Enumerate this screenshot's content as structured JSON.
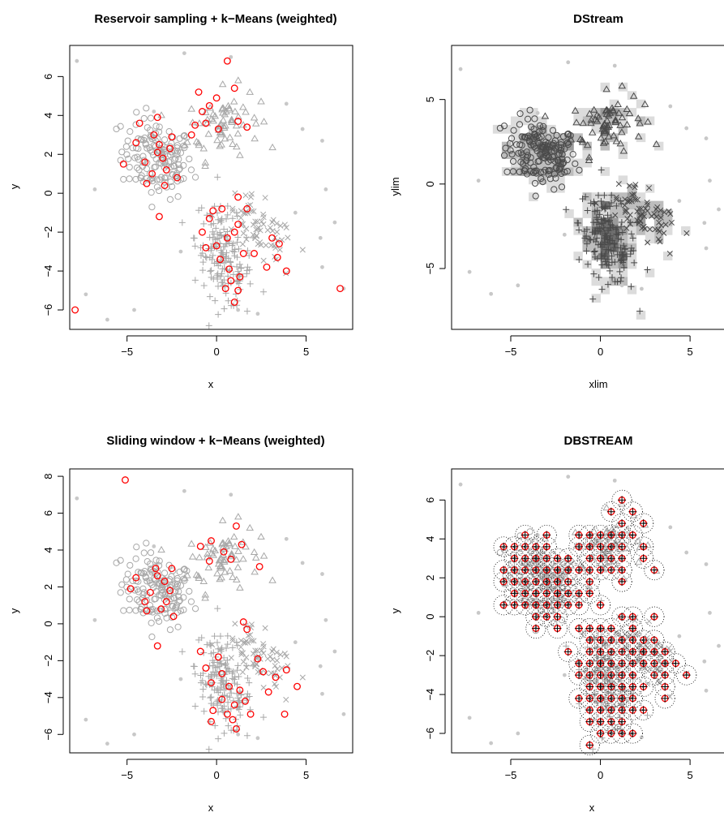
{
  "chart_data": [
    {
      "type": "scatter",
      "title": "Reservoir sampling + k−Means (weighted)",
      "xlabel": "x",
      "ylabel": "y",
      "xlim": [
        -8.2,
        7.6
      ],
      "ylim": [
        -7.0,
        7.6
      ],
      "xticks": [
        -5,
        0,
        5
      ],
      "xtick_labels": [
        "−5",
        "0",
        "5"
      ],
      "yticks": [
        -6,
        -4,
        -2,
        0,
        2,
        4,
        6
      ],
      "ytick_labels": [
        "−6",
        "−4",
        "−2",
        "0",
        "2",
        "4",
        "6"
      ],
      "background_data": "mixture of 4 clusters (circles, triangles, plus, cross) and noise points in light gray",
      "cluster_centers": [
        [
          -3.3,
          2.1
        ],
        [
          -3.6,
          1.0
        ],
        [
          -3.0,
          1.8
        ],
        [
          -4.5,
          2.6
        ],
        [
          -2.6,
          2.3
        ],
        [
          -3.2,
          2.5
        ],
        [
          -2.8,
          1.2
        ],
        [
          -3.9,
          0.5
        ],
        [
          -2.2,
          0.8
        ],
        [
          -2.9,
          0.4
        ],
        [
          -4.0,
          1.6
        ],
        [
          -3.5,
          3.0
        ],
        [
          -4.3,
          3.6
        ],
        [
          -3.3,
          3.9
        ],
        [
          -2.5,
          2.9
        ],
        [
          -5.2,
          1.5
        ],
        [
          -3.2,
          -1.2
        ],
        [
          -1.4,
          3.0
        ],
        [
          -1.2,
          3.5
        ],
        [
          -0.6,
          3.6
        ],
        [
          -0.4,
          4.5
        ],
        [
          -0.8,
          4.2
        ],
        [
          0.1,
          3.3
        ],
        [
          1.7,
          3.4
        ],
        [
          1.2,
          3.7
        ],
        [
          -1.0,
          5.2
        ],
        [
          1.0,
          5.4
        ],
        [
          0.6,
          6.8
        ],
        [
          0.0,
          4.9
        ],
        [
          -0.4,
          -1.3
        ],
        [
          -0.8,
          -2.0
        ],
        [
          -0.6,
          -2.8
        ],
        [
          -0.2,
          -0.9
        ],
        [
          0.0,
          -2.7
        ],
        [
          0.2,
          -3.4
        ],
        [
          0.7,
          -3.9
        ],
        [
          1.0,
          -5.6
        ],
        [
          0.8,
          -4.5
        ],
        [
          1.3,
          -4.3
        ],
        [
          1.2,
          -5.0
        ],
        [
          0.5,
          -4.9
        ],
        [
          0.6,
          -2.3
        ],
        [
          1.0,
          -2.0
        ],
        [
          0.3,
          -0.8
        ],
        [
          1.2,
          -1.6
        ],
        [
          1.7,
          -0.8
        ],
        [
          2.1,
          -3.1
        ],
        [
          2.8,
          -3.8
        ],
        [
          3.1,
          -2.3
        ],
        [
          3.4,
          -3.3
        ],
        [
          3.9,
          -4.0
        ],
        [
          3.5,
          -2.6
        ],
        [
          1.5,
          -3.1
        ],
        [
          1.2,
          -0.2
        ],
        [
          6.9,
          -4.9
        ],
        [
          -7.9,
          -6.0
        ]
      ]
    },
    {
      "type": "scatter",
      "title": "DStream",
      "xlabel": "xlim",
      "ylabel": "ylim",
      "xlim": [
        -8.3,
        7.3
      ],
      "ylim": [
        -8.6,
        8.2
      ],
      "xticks": [
        -5,
        0,
        5
      ],
      "xtick_labels": [
        "−5",
        "0",
        "5"
      ],
      "yticks": [
        -5,
        0,
        5
      ],
      "ytick_labels": [
        "−5",
        "0",
        "5"
      ],
      "grid_cells": "dense grid cells drawn as gray squares over the clusters"
    },
    {
      "type": "scatter",
      "title": "Sliding window + k−Means (weighted)",
      "xlabel": "x",
      "ylabel": "y",
      "xlim": [
        -8.2,
        7.6
      ],
      "ylim": [
        -7.0,
        8.4
      ],
      "xticks": [
        -5,
        0,
        5
      ],
      "xtick_labels": [
        "−5",
        "0",
        "5"
      ],
      "yticks": [
        -6,
        -4,
        -2,
        0,
        2,
        4,
        6,
        8
      ],
      "ytick_labels": [
        "−6",
        "−4",
        "−2",
        "0",
        "2",
        "4",
        "6",
        "8"
      ],
      "cluster_centers": [
        [
          -5.1,
          7.8
        ],
        [
          -3.3,
          2.6
        ],
        [
          -3.7,
          1.7
        ],
        [
          -2.8,
          1.2
        ],
        [
          -3.1,
          0.8
        ],
        [
          -4.0,
          1.2
        ],
        [
          -4.8,
          1.9
        ],
        [
          -4.5,
          2.5
        ],
        [
          -2.9,
          2.3
        ],
        [
          -3.4,
          3.0
        ],
        [
          -2.5,
          3.0
        ],
        [
          -2.6,
          1.8
        ],
        [
          -3.9,
          0.7
        ],
        [
          -3.3,
          -1.2
        ],
        [
          -2.4,
          0.4
        ],
        [
          -0.3,
          4.5
        ],
        [
          -0.9,
          4.2
        ],
        [
          0.4,
          3.9
        ],
        [
          0.8,
          3.5
        ],
        [
          1.1,
          5.3
        ],
        [
          1.4,
          4.3
        ],
        [
          2.4,
          3.1
        ],
        [
          -0.4,
          3.4
        ],
        [
          -0.9,
          -1.5
        ],
        [
          -0.6,
          -2.4
        ],
        [
          -0.3,
          -3.2
        ],
        [
          0.1,
          -1.8
        ],
        [
          0.3,
          -2.7
        ],
        [
          0.7,
          -3.4
        ],
        [
          1.0,
          -4.4
        ],
        [
          0.6,
          -4.9
        ],
        [
          1.1,
          -5.7
        ],
        [
          0.9,
          -5.2
        ],
        [
          1.3,
          -3.6
        ],
        [
          0.3,
          -4.1
        ],
        [
          1.9,
          -4.9
        ],
        [
          1.5,
          0.1
        ],
        [
          1.7,
          -0.3
        ],
        [
          2.3,
          -1.9
        ],
        [
          2.6,
          -2.6
        ],
        [
          3.3,
          -2.9
        ],
        [
          3.8,
          -4.9
        ],
        [
          4.5,
          -3.4
        ],
        [
          3.9,
          -2.5
        ],
        [
          2.9,
          -3.7
        ],
        [
          -0.2,
          -4.7
        ],
        [
          1.6,
          -4.2
        ],
        [
          -0.3,
          -5.3
        ]
      ]
    },
    {
      "type": "scatter",
      "title": "DBSTREAM",
      "xlabel": "x",
      "ylabel": "y",
      "xlim": [
        -8.3,
        7.3
      ],
      "ylim": [
        -7.0,
        7.6
      ],
      "xticks": [
        -5,
        0,
        5
      ],
      "xtick_labels": [
        "−5",
        "0",
        "5"
      ],
      "yticks": [
        -6,
        -4,
        -2,
        0,
        2,
        4,
        6
      ],
      "ytick_labels": [
        "−6",
        "−4",
        "−2",
        "0",
        "2",
        "4",
        "6"
      ],
      "micro_clusters": "micro-cluster centers shown as red crossed circles with dotted radius circles"
    }
  ]
}
